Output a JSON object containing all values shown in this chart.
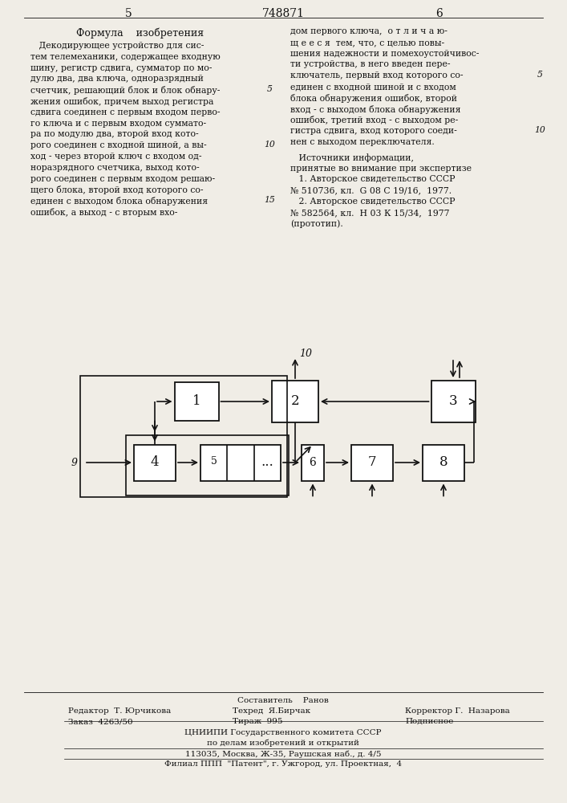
{
  "page_number_left": "5",
  "page_number_center": "748871",
  "page_number_right": "6",
  "section_title": "Формула    изобретения",
  "left_col_lines": [
    "   Декодирующее устройство для сис-",
    "тем телемеханики, содержащее входную",
    "шину, регистр сдвига, сумматор по мо-",
    "дулю два, два ключа, одноразрядный",
    "счетчик, решающий блок и блок обнару-",
    "жения ошибок, причем выход регистра",
    "сдвига соединен с первым входом перво-",
    "го ключа и с первым входом суммато-",
    "ра по модулю два, второй вход кото-",
    "рого соединен с входной шиной, а вы-",
    "ход - через второй ключ с входом од-",
    "норазрядного счетчика, выход кото-",
    "рого соединен с первым входом решаю-",
    "щего блока, второй вход которого со-",
    "единен с выходом блока обнаружения",
    "ошибок, а выход - с вторым вхо-"
  ],
  "right_col_lines": [
    "дом первого ключа,  о т л и ч а ю-",
    "щ е е с я  тем, что, с целью повы-",
    "шения надежности и помехоустойчивос-",
    "ти устройства, в него введен пере-",
    "ключатель, первый вход которого со-",
    "единен с входной шиной и с входом",
    "блока обнаружения ошибок, второй",
    "вход - с выходом блока обнаружения",
    "ошибок, третий вход - с выходом ре-",
    "гистра сдвига, вход которого соеди-",
    "нен с выходом переключателя."
  ],
  "refs_lines": [
    "   Источники информации,",
    "принятые во внимание при экспертизе",
    "   1. Авторское свидетельство СССР",
    "№ 510736, кл.  G 08 C 19/16,  1977.",
    "   2. Авторское свидетельство СССР",
    "№ 582564, кл.  Н 03 К 15/34,  1977",
    "(прототип)."
  ],
  "lnum_left": {
    "4": "5",
    "9": "10",
    "14": "15"
  },
  "lnum_right": {
    "4": "5",
    "9": "10"
  },
  "footer_col1": [
    "Редактор  Т. Юрчикова",
    "Заказ  4263/50"
  ],
  "footer_col2": [
    "Техред  Я.Бирчак",
    "Тираж  995"
  ],
  "footer_col3": [
    "Корректор Г.  Назарова",
    "Подписное"
  ],
  "footer_center": [
    "Составитель    Ранов",
    "ЦНИИПИ Государственного комитета СССР",
    "по делам изобретений и открытий",
    "113035, Москва, Ж-35, Раушская наб., д. 4/5",
    "Филиал ППП  \"Патент\", г. Ужгород, ул. Проектная,  4"
  ],
  "bg_color": "#f0ede6",
  "text_color": "#111111"
}
